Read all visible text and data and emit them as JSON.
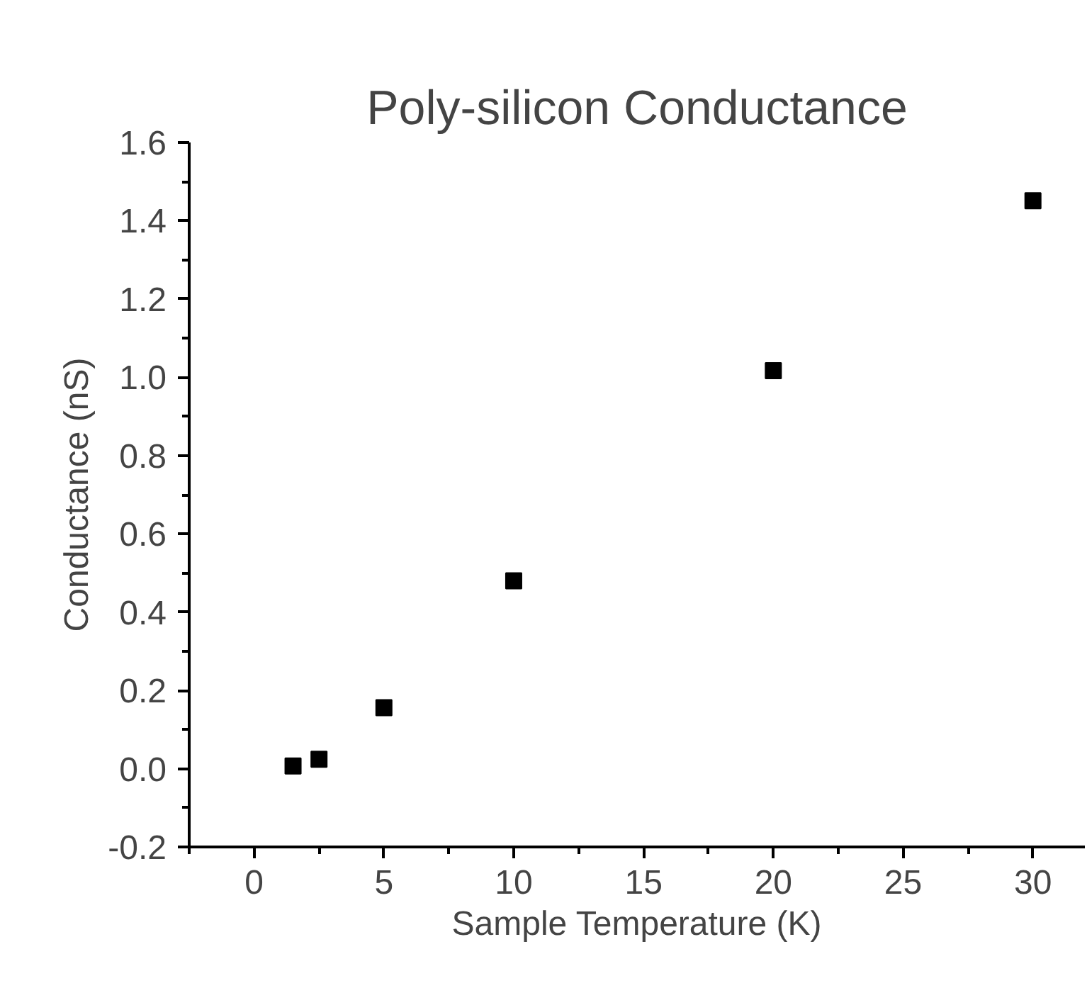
{
  "chart_data": {
    "type": "scatter",
    "title": "Poly-silicon Conductance",
    "xlabel": "Sample Temperature (K)",
    "ylabel": "Conductance (nS)",
    "x": [
      1.5,
      2.5,
      5,
      10,
      20,
      30
    ],
    "series": [
      {
        "color": "#000000",
        "values": [
          0.007,
          0.024,
          0.156,
          0.48,
          1.017,
          1.451
        ]
      }
    ],
    "marker": "square",
    "xlim": [
      -2.5,
      32
    ],
    "xticks": [
      0,
      5,
      10,
      15,
      20,
      25,
      30
    ],
    "ylim": [
      -0.2,
      1.6
    ],
    "yticks": [
      -0.2,
      {
        "value": 0,
        "label": "0.0"
      },
      0.2,
      0.4,
      0.6,
      0.8,
      {
        "value": 1,
        "label": "1.0"
      },
      1.2,
      1.4,
      1.6
    ]
  }
}
